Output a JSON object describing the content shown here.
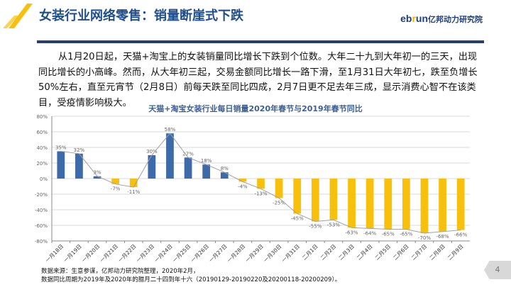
{
  "header": {
    "title": "女装行业网络零售：销量断崖式下跌",
    "logo_prefix": "eb",
    "logo_r": "r",
    "logo_suffix": "un",
    "logo_cn": "亿邦动力研究院"
  },
  "body_text": "从1月20日起，天猫+淘宝上的女装销量同比增长下跌到个位数。大年二十九到大年初一的三天，出现同比增长的小高峰。然而，从大年初三起，交易金额同比增长一路下滑，至1月31日大年初七，跌至负增长50%左右，直至元宵节（2月8日）前每天跌至同比四成，2月7日更不足去年三成，显示消费心智不在该类目，受疫情影响极大。",
  "chart_data": {
    "type": "bar",
    "title": "天猫+淘宝女装行业每日销量2020年春节与2019年春节同比",
    "categories": [
      "一月18日",
      "一月19日",
      "一月20日",
      "一月21日",
      "一月22日",
      "一月23日",
      "一月24日",
      "一月25日",
      "一月26日",
      "一月27日",
      "一月28日",
      "一月29日",
      "一月30日",
      "一月31日",
      "二月1日",
      "二月2日",
      "二月3日",
      "二月4日",
      "二月5日",
      "二月6日",
      "二月7日",
      "二月8日",
      "二月9日"
    ],
    "values": [
      35,
      32,
      3,
      -7,
      -11,
      30,
      58,
      27,
      18,
      8,
      -4,
      -13,
      -25,
      -45,
      -55,
      -53,
      -63,
      -64,
      -65,
      -65,
      -70,
      -68,
      -66
    ],
    "value_labels": [
      "35%",
      "32%",
      "3%",
      "-7%",
      "-11%",
      "30%",
      "58%",
      "27%",
      "18%",
      "8%",
      "-4%",
      "-13%",
      "-25%",
      "-45%",
      "-55%",
      "-53%",
      "-63%",
      "-64%",
      "-65%",
      "-65%",
      "-70%",
      "-68%",
      "-66%"
    ],
    "ylim": [
      -80,
      80
    ],
    "yticks": [
      "-80%",
      "-60%",
      "-40%",
      "-20%",
      "0%",
      "20%",
      "40%",
      "60%",
      "80%"
    ],
    "grid": true,
    "connecting_line": true,
    "colors": {
      "positive": "#3d6aa8",
      "negative": "#f7c00c",
      "line": "#a0a0a0"
    }
  },
  "footnotes": [
    "数据来源：生意参谋，亿邦动力研究院整理，2020年2月，",
    "数据同比周期为2019年及2020年的腊月二十四到年十六（20190129-20190220及20200118-20200209）。"
  ],
  "page_number": "4"
}
